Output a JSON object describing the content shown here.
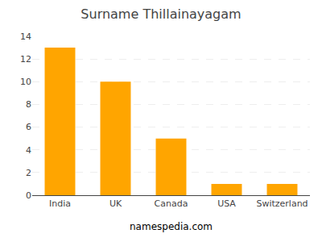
{
  "chart_data": {
    "type": "bar",
    "title": "Surname Thillainayagam",
    "categories": [
      "India",
      "UK",
      "Canada",
      "USA",
      "Switzerland"
    ],
    "values": [
      13,
      10,
      5,
      1,
      1
    ],
    "color": "#FFA500",
    "ylim": [
      0,
      14
    ],
    "yticks": [
      0,
      2,
      4,
      6,
      8,
      10,
      12,
      14
    ],
    "grid": true,
    "annotations": [
      "namespedia.com"
    ]
  }
}
